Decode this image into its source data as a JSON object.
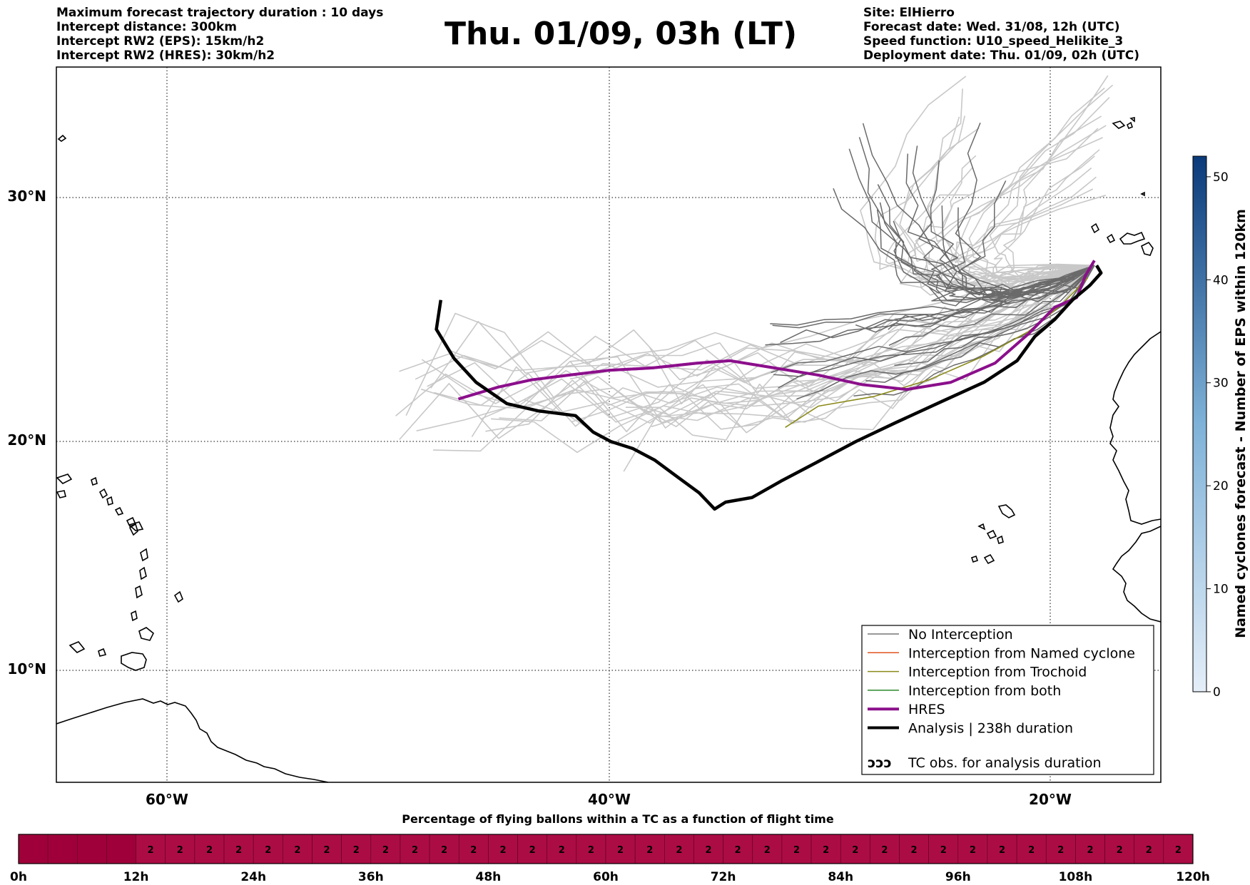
{
  "header": {
    "left": [
      "Maximum forecast trajectory duration : 10 days",
      "Intercept distance: 300km",
      "Intercept RW2 (EPS):  15km/h2",
      "Intercept RW2 (HRES): 30km/h2"
    ],
    "title": "Thu. 01/09, 03h (LT)",
    "right": [
      "Site: ElHierro",
      "Forecast date: Wed. 31/08, 12h (UTC)",
      "Speed function: U10_speed_Helikite_3",
      "Deployment date: Thu. 01/09, 02h (UTC)"
    ]
  },
  "map": {
    "lat_labels": [
      "30°N",
      "20°N",
      "10°N"
    ],
    "lon_labels": [
      "60°W",
      "40°W",
      "20°W"
    ]
  },
  "legend": {
    "items": [
      {
        "label": "No Interception",
        "color": "#777777",
        "width": 1.5
      },
      {
        "label": "Interception from Named cyclone",
        "color": "#e0541f",
        "width": 1.5
      },
      {
        "label": "Interception from Trochoid",
        "color": "#8a8a1a",
        "width": 1.5
      },
      {
        "label": "Interception from both",
        "color": "#2a8a2a",
        "width": 1.5
      },
      {
        "label": "HRES",
        "color": "#8b0f8b",
        "width": 4
      },
      {
        "label": "Analysis | 238h duration",
        "color": "#000000",
        "width": 4
      }
    ],
    "tc_item": {
      "label": "TC obs. for analysis duration",
      "symbol": "ↄↄↄ"
    }
  },
  "colorbar": {
    "label": "Named cyclones forecast - Number of EPS within 120km",
    "ticks": [
      "0",
      "10",
      "20",
      "30",
      "40",
      "50"
    ],
    "min": 0,
    "max": 52,
    "color_low": "#e4eef8",
    "color_high": "#0a3a7a"
  },
  "bottom_bar": {
    "title": "Percentage of flying ballons within a TC as a function of flight time",
    "ticks": [
      "0h",
      "12h",
      "24h",
      "36h",
      "48h",
      "60h",
      "72h",
      "84h",
      "96h",
      "108h",
      "120h"
    ],
    "cell_value": "2",
    "colors": {
      "zero": "#a0003a",
      "filled": "#ac0c44"
    }
  },
  "chart_data": {
    "type": "line",
    "map_extent": {
      "lon": [
        -65,
        -15
      ],
      "lat": [
        5.4,
        34.7
      ]
    },
    "grid": "dotted",
    "series": [
      {
        "name": "Analysis | 238h duration",
        "lonlat": [
          [
            -47.6,
            25.9
          ],
          [
            -47.8,
            24.7
          ],
          [
            -47.0,
            23.5
          ],
          [
            -46.0,
            22.5
          ],
          [
            -44.6,
            21.6
          ],
          [
            -43.2,
            21.3
          ],
          [
            -41.5,
            21.1
          ],
          [
            -40.7,
            20.4
          ],
          [
            -39.9,
            20.0
          ],
          [
            -38.9,
            19.7
          ],
          [
            -37.9,
            19.2
          ],
          [
            -36.9,
            18.5
          ],
          [
            -35.9,
            17.8
          ],
          [
            -35.2,
            17.1
          ],
          [
            -34.7,
            17.4
          ],
          [
            -33.5,
            17.6
          ],
          [
            -32.2,
            18.3
          ],
          [
            -30.6,
            19.1
          ],
          [
            -28.8,
            20.0
          ],
          [
            -27.0,
            20.8
          ],
          [
            -24.9,
            21.7
          ],
          [
            -23.0,
            22.5
          ],
          [
            -21.5,
            23.4
          ],
          [
            -20.7,
            24.4
          ],
          [
            -19.8,
            25.1
          ],
          [
            -19.0,
            25.9
          ],
          [
            -18.2,
            26.5
          ],
          [
            -17.7,
            27.0
          ],
          [
            -17.9,
            27.3
          ]
        ]
      },
      {
        "name": "HRES",
        "lonlat": [
          [
            -46.8,
            21.8
          ],
          [
            -45.0,
            22.3
          ],
          [
            -43.5,
            22.6
          ],
          [
            -41.8,
            22.8
          ],
          [
            -40.0,
            23.0
          ],
          [
            -38.0,
            23.1
          ],
          [
            -36.0,
            23.3
          ],
          [
            -34.5,
            23.4
          ],
          [
            -32.5,
            23.1
          ],
          [
            -30.5,
            22.8
          ],
          [
            -28.5,
            22.4
          ],
          [
            -26.5,
            22.2
          ],
          [
            -24.5,
            22.5
          ],
          [
            -22.5,
            23.3
          ],
          [
            -21.0,
            24.5
          ],
          [
            -19.8,
            25.6
          ],
          [
            -18.8,
            26.0
          ],
          [
            -18.4,
            26.9
          ],
          [
            -18.0,
            27.5
          ]
        ]
      }
    ]
  }
}
